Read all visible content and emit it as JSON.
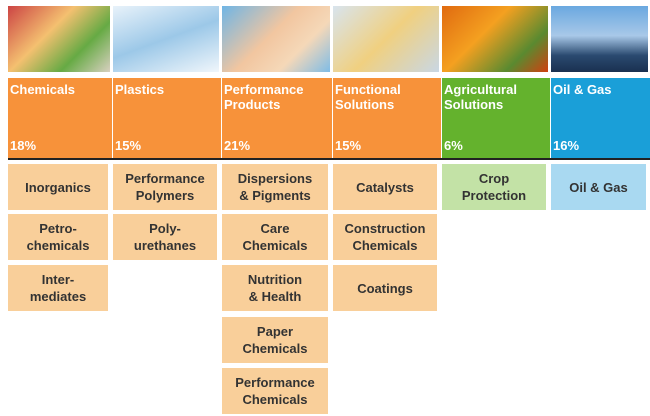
{
  "segments": [
    {
      "name": "Chemicals",
      "share": "18%",
      "items": [
        "Inorganics",
        "Petro-\nchemicals",
        "Inter-\nmediates"
      ]
    },
    {
      "name": "Plastics",
      "share": "15%",
      "items": [
        "Performance\nPolymers",
        "Poly-\nurethanes"
      ]
    },
    {
      "name": "Performance\nProducts",
      "share": "21%",
      "items": [
        "Dispersions\n& Pigments",
        "Care\nChemicals",
        "Nutrition\n& Health",
        "Paper\nChemicals",
        "Performance\nChemicals"
      ]
    },
    {
      "name": "Functional\nSolutions",
      "share": "15%",
      "items": [
        "Catalysts",
        "Construction\nChemicals",
        "Coatings"
      ]
    },
    {
      "name": "Agricultural\nSolutions",
      "share": "6%",
      "items": [
        "Crop\nProtection"
      ]
    },
    {
      "name": "Oil & Gas",
      "share": "16%",
      "items": [
        "Oil & Gas"
      ]
    }
  ]
}
